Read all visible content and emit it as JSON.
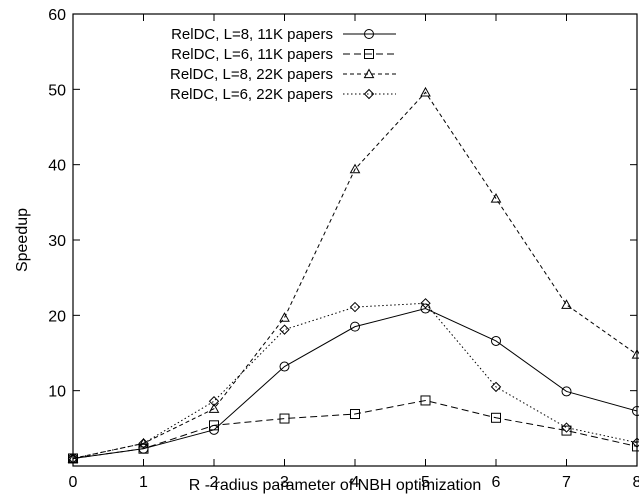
{
  "chart_data": {
    "type": "line",
    "title": "",
    "xlabel": "R - radius parameter of NBH optimization",
    "ylabel": "Speedup",
    "xlim": [
      0,
      8
    ],
    "ylim": [
      0,
      60
    ],
    "x_ticks": [
      "0",
      "1",
      "2",
      "3",
      "4",
      "5",
      "6",
      "7",
      "8"
    ],
    "y_ticks": [
      "10",
      "20",
      "30",
      "40",
      "50",
      "60"
    ],
    "grid": false,
    "legend_position": "top-left",
    "series": [
      {
        "name": "RelDC, L=8, 11K papers",
        "marker": "circle",
        "dash": "solid",
        "x": [
          0,
          1,
          2,
          3,
          4,
          5,
          6,
          7,
          8
        ],
        "values": [
          1,
          2.3,
          4.8,
          13.2,
          18.5,
          20.9,
          16.6,
          9.9,
          7.3
        ]
      },
      {
        "name": "RelDC, L=6, 11K papers",
        "marker": "square",
        "dash": "dashed",
        "x": [
          0,
          1,
          2,
          3,
          4,
          5,
          6,
          7,
          8
        ],
        "values": [
          1,
          2.3,
          5.4,
          6.3,
          6.9,
          8.7,
          6.4,
          4.7,
          2.6
        ]
      },
      {
        "name": "RelDC, L=8, 22K papers",
        "marker": "triangle",
        "dash": "short-dashed",
        "x": [
          0,
          1,
          2,
          3,
          4,
          5,
          6,
          7,
          8
        ],
        "values": [
          1,
          3,
          7.6,
          19.7,
          39.4,
          49.6,
          35.5,
          21.4,
          14.8
        ]
      },
      {
        "name": "RelDC, L=6, 22K papers",
        "marker": "diamond",
        "dash": "dotted",
        "x": [
          0,
          1,
          2,
          3,
          4,
          5,
          6,
          7,
          8
        ],
        "values": [
          1,
          3,
          8.6,
          18.1,
          21.1,
          21.6,
          10.5,
          5.1,
          3.1
        ]
      }
    ]
  }
}
